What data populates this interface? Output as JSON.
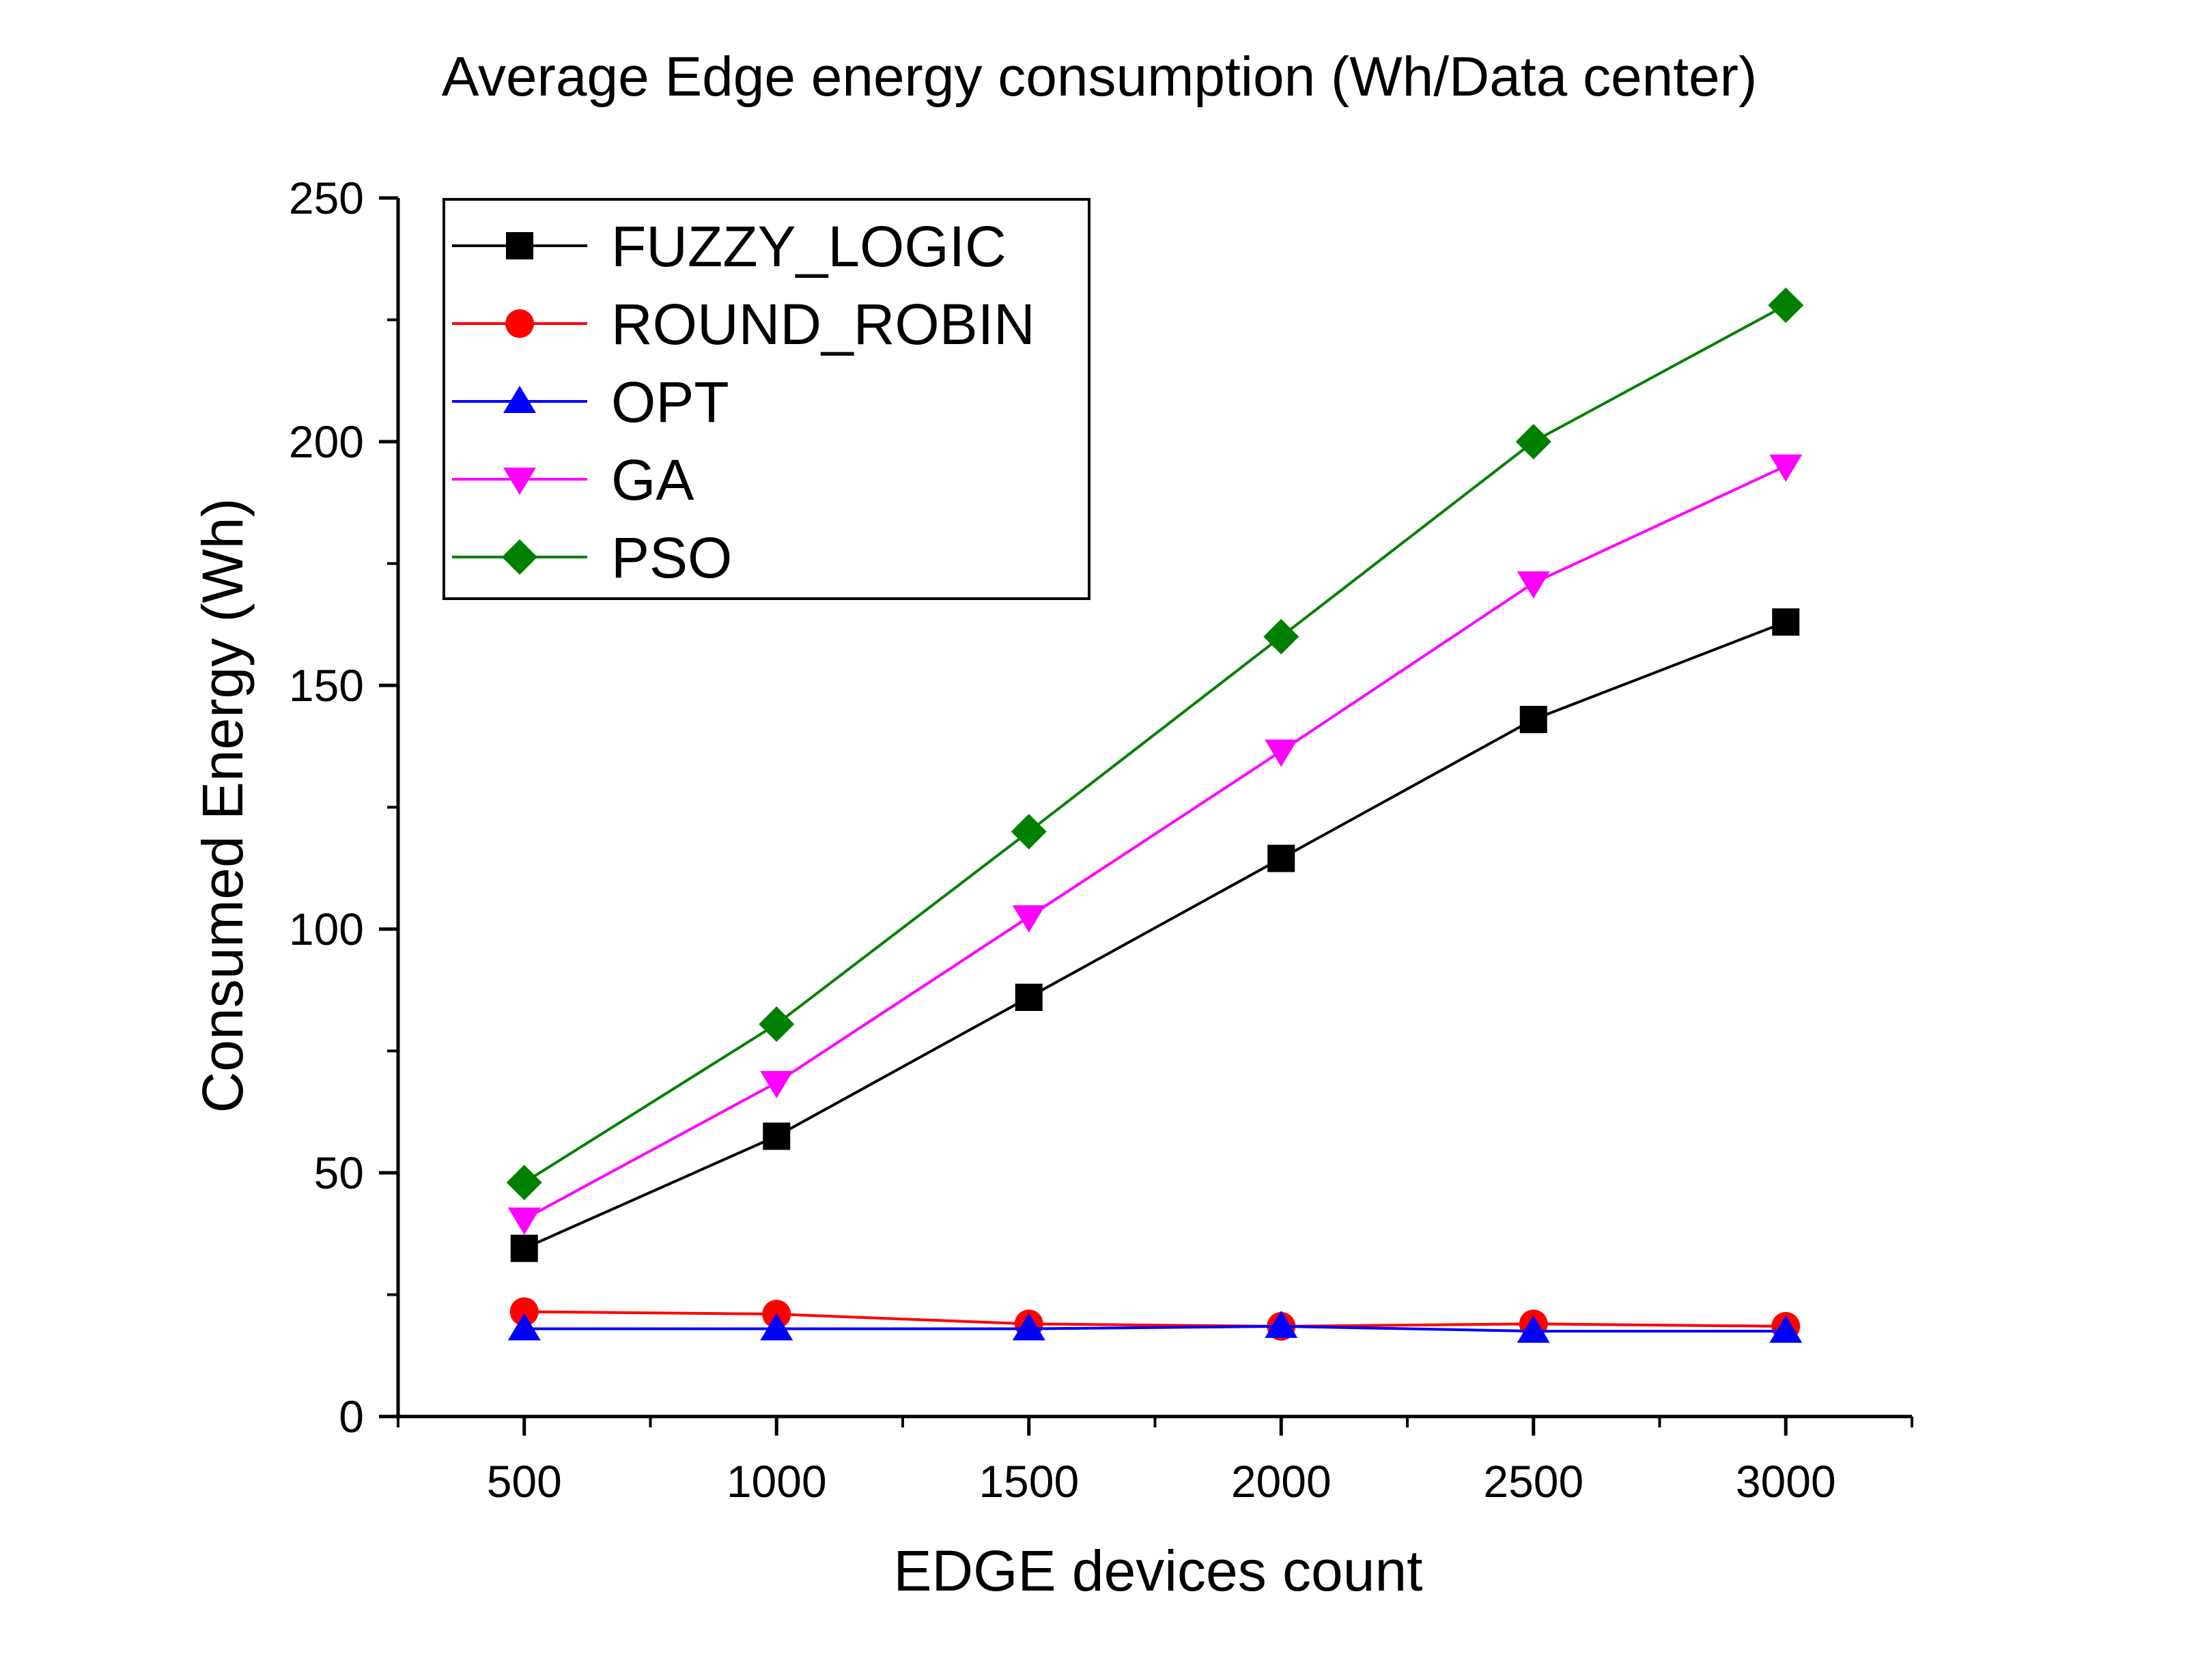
{
  "chart_data": {
    "type": "line",
    "title": "Average Edge energy consumption (Wh/Data center)",
    "xlabel": "EDGE devices count",
    "ylabel": "Consumed Energy (Wh)",
    "x": [
      500,
      1000,
      1500,
      2000,
      2500,
      3000
    ],
    "xlim": [
      250,
      3250
    ],
    "ylim": [
      0,
      250
    ],
    "x_ticks": [
      500,
      1000,
      1500,
      2000,
      2500,
      3000
    ],
    "y_ticks": [
      0,
      50,
      100,
      150,
      200,
      250
    ],
    "legend_position": "top-left",
    "grid": false,
    "series": [
      {
        "name": "FUZZY_LOGIC",
        "color": "#000000",
        "marker": "square",
        "values": [
          34.5,
          57.5,
          86,
          114.5,
          143,
          163
        ]
      },
      {
        "name": "ROUND_ROBIN",
        "color": "#ff0000",
        "marker": "circle",
        "values": [
          21.5,
          21,
          19,
          18.5,
          19,
          18.5
        ]
      },
      {
        "name": "OPT",
        "color": "#0000ff",
        "marker": "triangle-up",
        "values": [
          18,
          18,
          18,
          18.5,
          17.5,
          17.5
        ]
      },
      {
        "name": "GA",
        "color": "#ff00ff",
        "marker": "triangle-down",
        "values": [
          40.5,
          68.5,
          102.5,
          136.5,
          171,
          195
        ]
      },
      {
        "name": "PSO",
        "color": "#008000",
        "marker": "diamond",
        "values": [
          48,
          80.5,
          120,
          160,
          200,
          228
        ]
      }
    ]
  }
}
